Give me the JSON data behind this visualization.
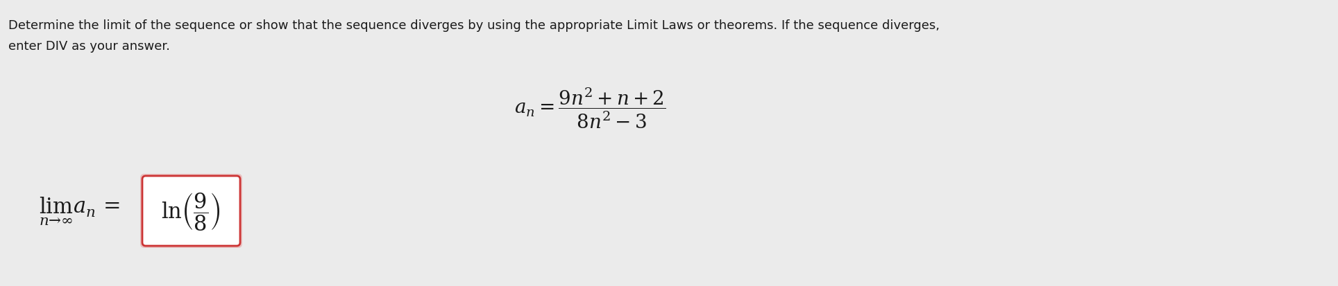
{
  "background_color": "#ebebeb",
  "box_bg_color": "#ffffff",
  "text_color": "#1a1a1a",
  "instruction_line1": "Determine the limit of the sequence or show that the sequence diverges by using the appropriate Limit Laws or theorems. If the sequence diverges,",
  "instruction_line2": "enter DIV as your answer.",
  "box_edge_color": "#cc3333",
  "box_shadow_color": "#e8a0a0",
  "instruction_fontsize": 13.0,
  "formula_fontsize": 20,
  "answer_fontsize": 22,
  "lim_fontsize": 22
}
